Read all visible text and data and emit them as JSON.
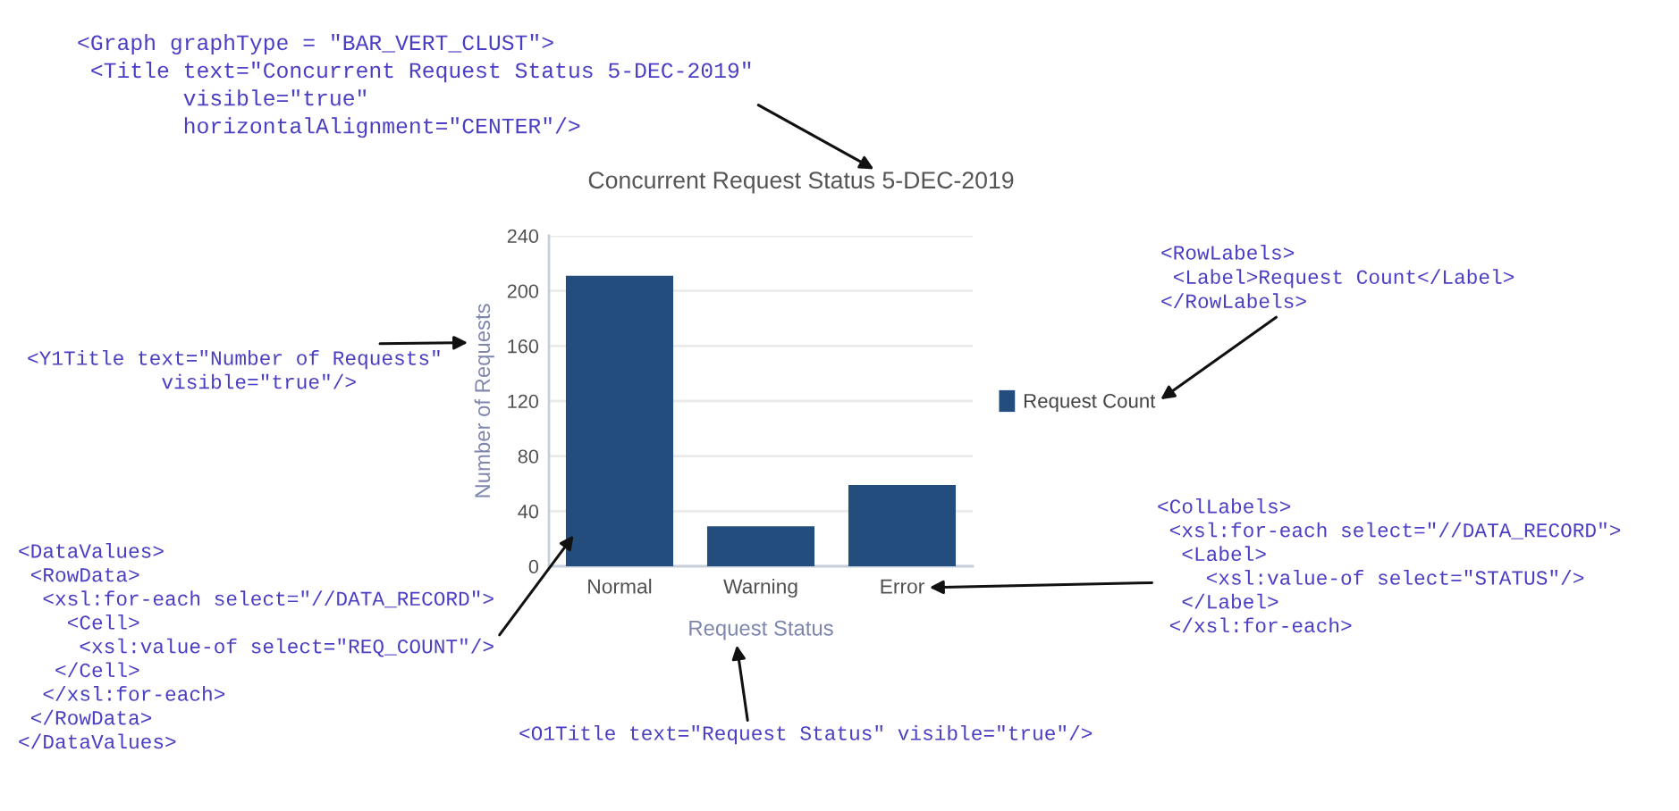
{
  "chart_data": {
    "type": "bar",
    "title": "Concurrent Request Status 5-DEC-2019",
    "xlabel": "Request Status",
    "ylabel": "Number of Requests",
    "categories": [
      "Normal",
      "Warning",
      "Error"
    ],
    "series": [
      {
        "name": "Request Count",
        "color": "#234d7c",
        "values": [
          211,
          29,
          59
        ]
      }
    ],
    "ylim": [
      0,
      240
    ],
    "yticks": [
      0,
      40,
      80,
      120,
      160,
      200,
      240
    ],
    "grid": "y",
    "legend": "right",
    "annotations": [
      "<Graph graphType = \"BAR_VERT_CLUST\">\n <Title text=\"Concurrent Request Status 5-DEC-2019\"\n        visible=\"true\"\n        horizontalAlignment=\"CENTER\"/>",
      "<Y1Title text=\"Number of Requests\"\n           visible=\"true\"/>",
      "<DataValues>\n <RowData>\n  <xsl:for-each select=\"//DATA_RECORD\">\n    <Cell>\n     <xsl:value-of select=\"REQ_COUNT\"/>\n   </Cell>\n  </xsl:for-each>\n </RowData>\n</DataValues>",
      "<RowLabels>\n <Label>Request Count</Label>\n</RowLabels>",
      "<ColLabels>\n <xsl:for-each select=\"//DATA_RECORD\">\n  <Label>\n    <xsl:value-of select=\"STATUS\"/>\n  </Label>\n </xsl:for-each>",
      "<O1Title text=\"Request Status\" visible=\"true\"/>"
    ]
  }
}
